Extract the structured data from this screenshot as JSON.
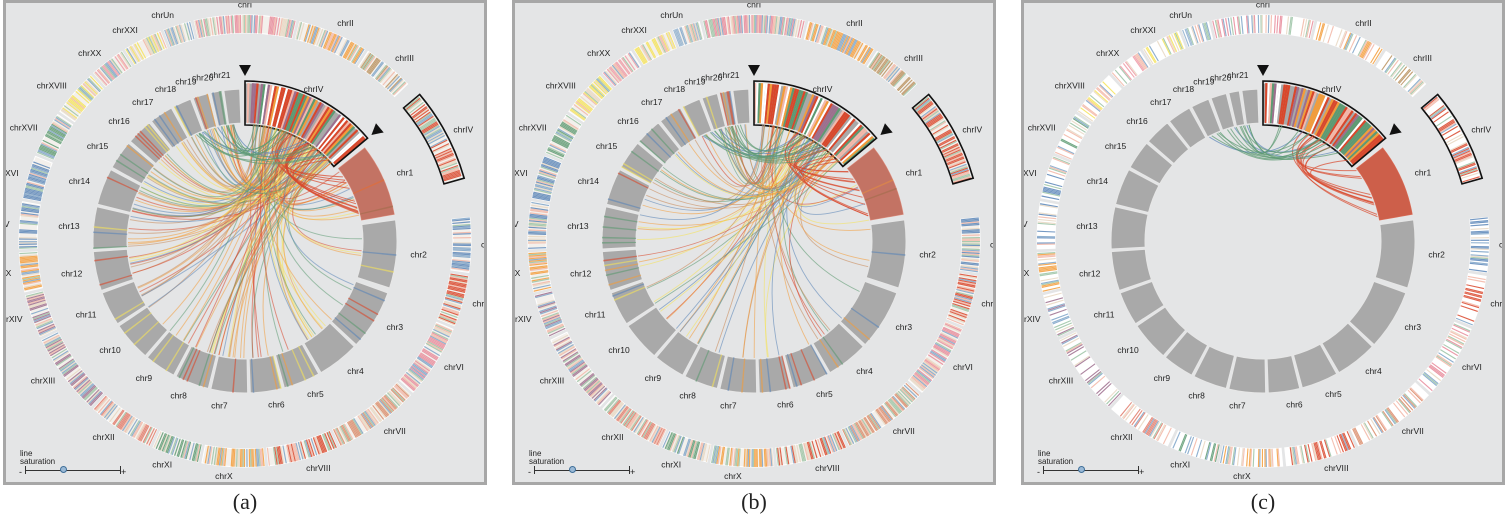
{
  "yeast_labels": [
    "chrI",
    "chrII",
    "chrIII",
    "chrIV",
    "chrIX",
    "chrV",
    "chrVI",
    "chrVII",
    "chrVIII",
    "chrX",
    "chrXI",
    "chrXII",
    "chrXIII",
    "chrXIV",
    "chrXIX",
    "chrXV",
    "chrXVI",
    "chrXVII",
    "chrXVIII",
    "chrXX",
    "chrXXI",
    "chrUn"
  ],
  "inner_labels": [
    "chr1",
    "chr2",
    "chr3",
    "chr4",
    "chr5",
    "chr6",
    "chr7",
    "chr8",
    "chr9",
    "chr10",
    "chr11",
    "chr12",
    "chr13",
    "chr14",
    "chr15",
    "chr16",
    "chr17",
    "chr18",
    "chr19",
    "chr20",
    "chr21",
    "chrIV"
  ],
  "slider_label_line1": "line",
  "slider_label_line2": "saturation",
  "slider_minus": "-",
  "slider_plus": "+",
  "panels": [
    {
      "caption": "(a)",
      "saturation": 0.4,
      "links": "many"
    },
    {
      "caption": "(b)",
      "saturation": 0.4,
      "links": "medium"
    },
    {
      "caption": "(c)",
      "saturation": 0.4,
      "links": "few"
    }
  ],
  "colors": {
    "panel_bg": "#e4e5e6",
    "segment_gray": "#a9a9a9",
    "orange": "#f39c3a",
    "red": "#d9472b",
    "green": "#5d9a72",
    "blue": "#5b86b8",
    "purple": "#9d6f8e",
    "yellow": "#f5e35a"
  }
}
